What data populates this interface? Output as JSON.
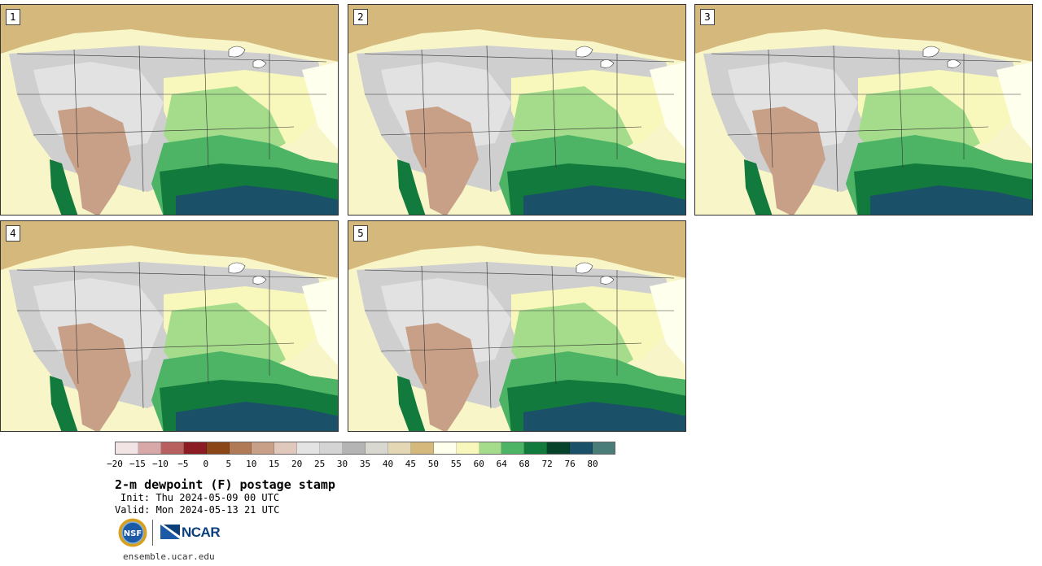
{
  "panels": [
    {
      "label": "1"
    },
    {
      "label": "2"
    },
    {
      "label": "3"
    },
    {
      "label": "4"
    },
    {
      "label": "5"
    }
  ],
  "legend": {
    "colors": [
      "#f2e4e4",
      "#d8a8a8",
      "#b86060",
      "#8c1c24",
      "#8a4616",
      "#b07a56",
      "#c8a088",
      "#e0c8bc",
      "#e4e4e4",
      "#d4d4d4",
      "#b4b4b4",
      "#d8d8d0",
      "#e4d8b4",
      "#d4b87c",
      "#ffffee",
      "#f8f8bc",
      "#a4dc8c",
      "#4cb464",
      "#127a3c",
      "#07432a",
      "#1a5068",
      "#4a7c7a"
    ],
    "ticks": [
      "−20",
      "−15",
      "−10",
      "−5",
      "0",
      "5",
      "10",
      "15",
      "20",
      "25",
      "30",
      "35",
      "40",
      "45",
      "50",
      "55",
      "60",
      "64",
      "68",
      "72",
      "76",
      "80"
    ]
  },
  "title": "2-m dewpoint (F) postage stamp",
  "init": "Init: Thu 2024-05-09 00 UTC",
  "valid": "Valid: Mon 2024-05-13 21 UTC",
  "logos": {
    "nsf": "NSF",
    "ncar": "NCAR"
  },
  "url": "ensemble.ucar.edu"
}
